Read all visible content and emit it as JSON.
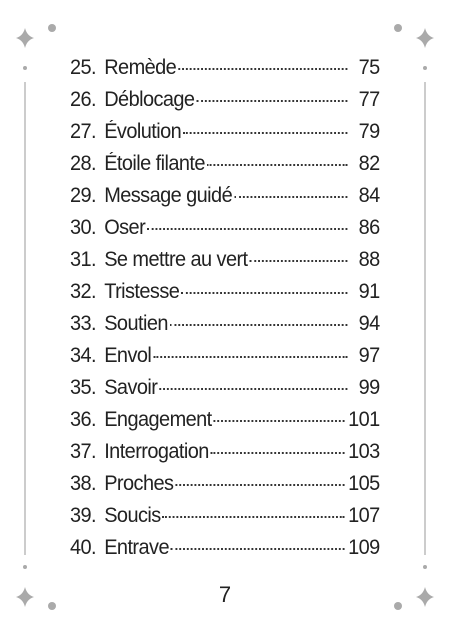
{
  "entries": [
    {
      "number": "25.",
      "title": "Remède",
      "page": "75"
    },
    {
      "number": "26.",
      "title": "Déblocage",
      "page": "77"
    },
    {
      "number": "27.",
      "title": "Évolution",
      "page": "79"
    },
    {
      "number": "28.",
      "title": "Étoile filante",
      "page": "82"
    },
    {
      "number": "29.",
      "title": "Message guidé",
      "page": "84"
    },
    {
      "number": "30.",
      "title": "Oser",
      "page": "86"
    },
    {
      "number": "31.",
      "title": "Se mettre au vert",
      "page": "88"
    },
    {
      "number": "32.",
      "title": "Tristesse",
      "page": "91"
    },
    {
      "number": "33.",
      "title": "Soutien",
      "page": "94"
    },
    {
      "number": "34.",
      "title": "Envol",
      "page": "97"
    },
    {
      "number": "35.",
      "title": "Savoir",
      "page": "99"
    },
    {
      "number": "36.",
      "title": "Engagement",
      "page": "101"
    },
    {
      "number": "37.",
      "title": "Interrogation",
      "page": "103"
    },
    {
      "number": "38.",
      "title": "Proches",
      "page": "105"
    },
    {
      "number": "39.",
      "title": "Soucis",
      "page": "107"
    },
    {
      "number": "40.",
      "title": "Entrave",
      "page": "109"
    }
  ],
  "footer": {
    "page_number": "7"
  }
}
